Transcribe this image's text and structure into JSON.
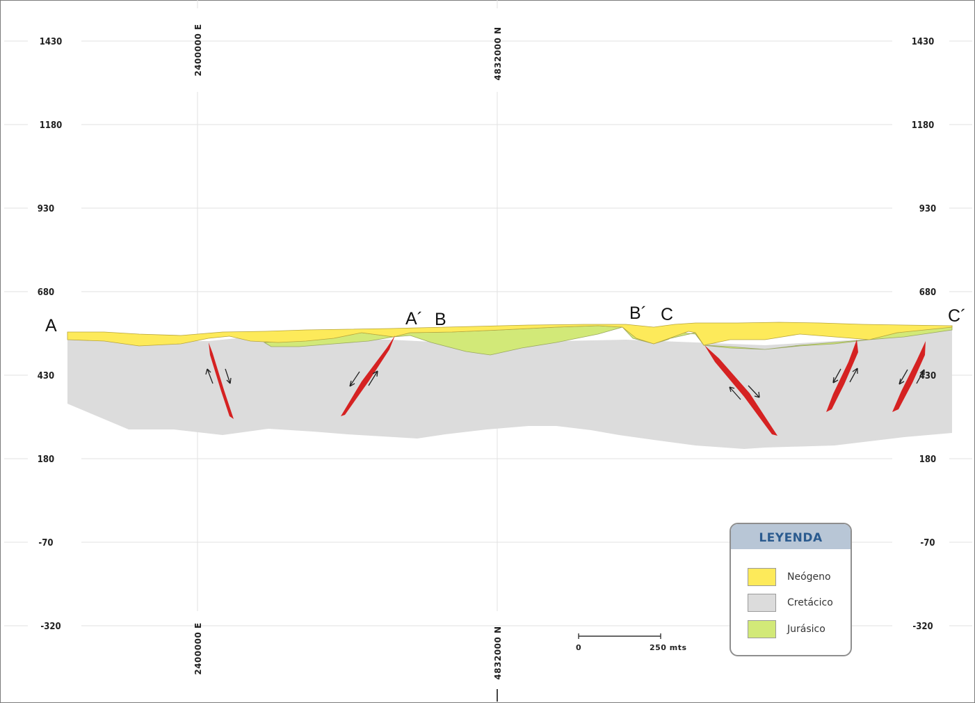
{
  "section": {
    "elevation_ticks": [
      "1430",
      "1180",
      "930",
      "680",
      "430",
      "180",
      "-70",
      "-320"
    ],
    "easting_label": "2400000 E",
    "northing_label": "4832000 N",
    "points": {
      "a": "A",
      "a_prime": "A´",
      "b": "B",
      "b_prime": "B´",
      "c": "C",
      "c_prime": "C´"
    },
    "scale_bar": {
      "start": "0",
      "end": "250 mts"
    }
  },
  "legend": {
    "title": "LEYENDA",
    "items": [
      {
        "label": "Neógeno",
        "color": "#fdea5a"
      },
      {
        "label": "Cretácico",
        "color": "#dcdcdc"
      },
      {
        "label": "Jurásico",
        "color": "#d2e978"
      }
    ]
  },
  "colors": {
    "fault": "#d52222",
    "gridline": "#e2e2e2"
  }
}
